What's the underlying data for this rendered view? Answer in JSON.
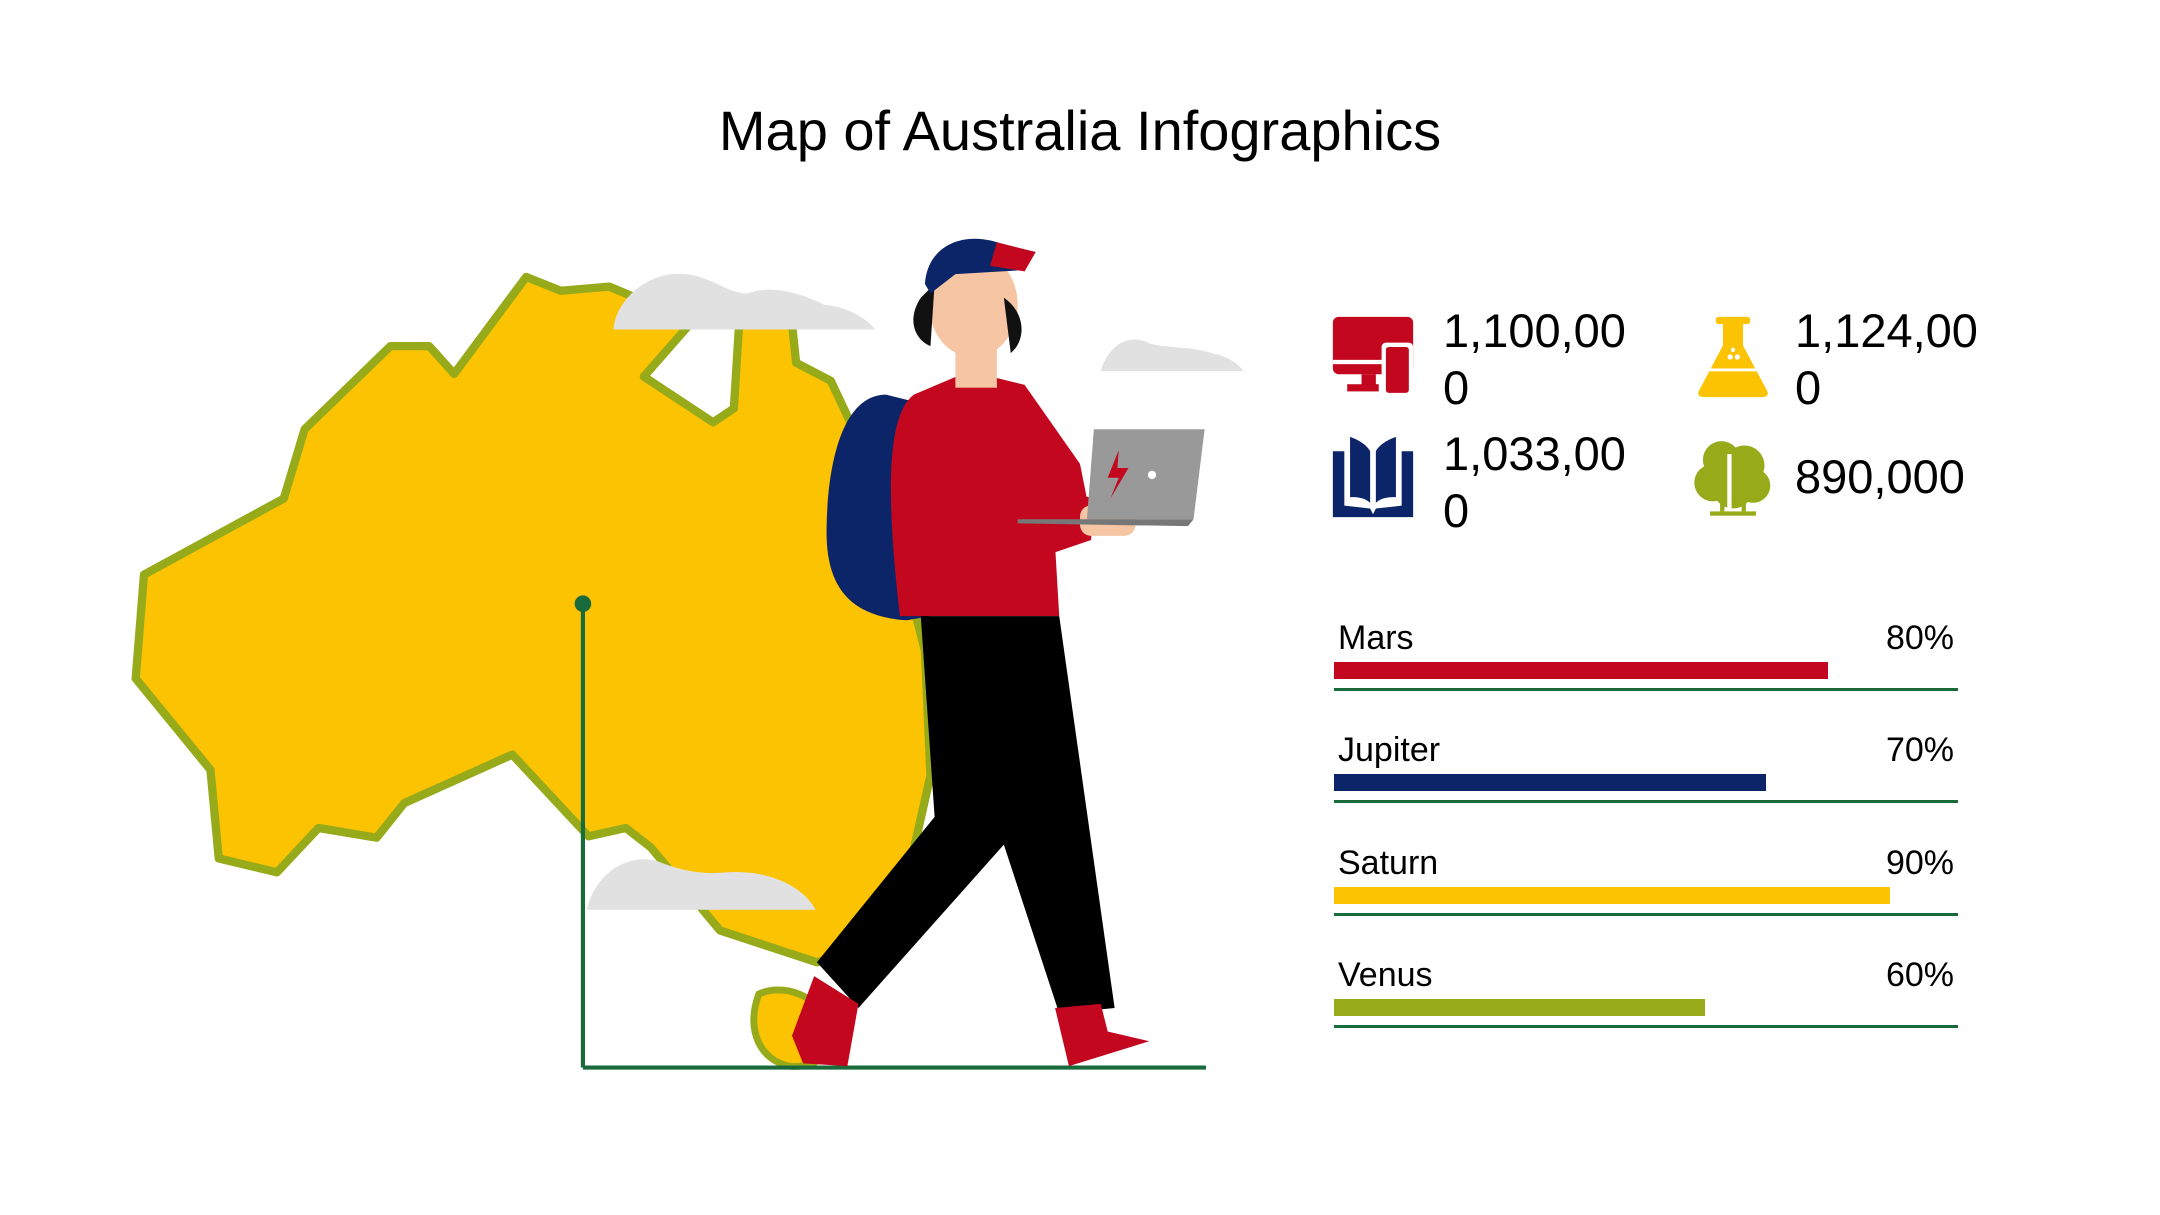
{
  "title": "Map of Australia Infographics",
  "colors": {
    "red": "#c3071f",
    "navy": "#0c2468",
    "yellow": "#fcc302",
    "olive": "#97ab1a",
    "green_line": "#1a6b3c",
    "cloud": "#e1e1e1",
    "map_fill": "#fcc302",
    "map_stroke": "#97ab1a"
  },
  "stats": [
    {
      "icon": "devices-icon",
      "value": "1,100,000",
      "color": "#c3071f"
    },
    {
      "icon": "flask-icon",
      "value": "1,124,000",
      "color": "#fcc302"
    },
    {
      "icon": "book-icon",
      "value": "1,033,000",
      "color": "#0c2468"
    },
    {
      "icon": "tree-icon",
      "value": "890,000",
      "color": "#97ab1a"
    }
  ],
  "chart_data": {
    "type": "bar",
    "orientation": "horizontal",
    "categories": [
      "Mars",
      "Jupiter",
      "Saturn",
      "Venus"
    ],
    "values": [
      80,
      70,
      90,
      60
    ],
    "labels": [
      "80%",
      "70%",
      "90%",
      "60%"
    ],
    "colors": [
      "#c3071f",
      "#0c2468",
      "#fcc302",
      "#97ab1a"
    ],
    "xlim": [
      0,
      100
    ]
  }
}
